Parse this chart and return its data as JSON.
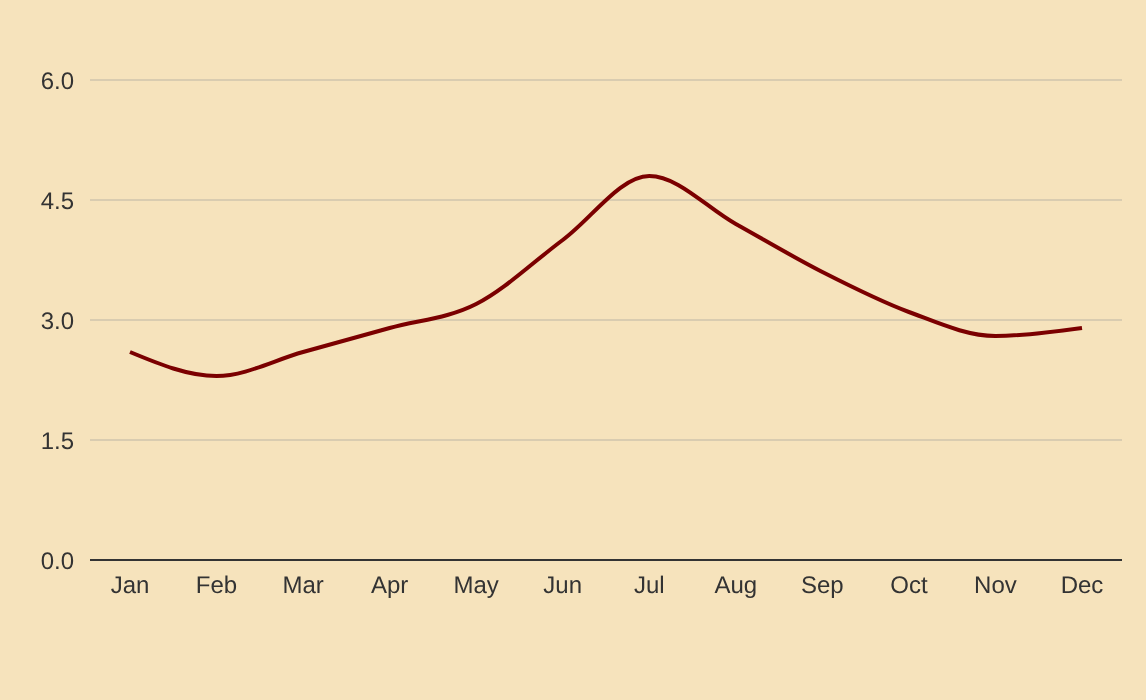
{
  "chart_data": {
    "type": "line",
    "categories": [
      "Jan",
      "Feb",
      "Mar",
      "Apr",
      "May",
      "Jun",
      "Jul",
      "Aug",
      "Sep",
      "Oct",
      "Nov",
      "Dec"
    ],
    "series": [
      {
        "color": "#7b0000",
        "values": [
          2.6,
          2.3,
          2.6,
          2.9,
          3.2,
          4.0,
          4.8,
          4.2,
          3.6,
          3.1,
          2.8,
          2.9
        ]
      }
    ],
    "ylim": [
      0,
      6
    ],
    "yticks": [
      {
        "value": 0,
        "label": "0.0"
      },
      1.5,
      {
        "value": 3,
        "label": "3.0"
      },
      4.5,
      {
        "value": 6,
        "label": "6.0"
      }
    ],
    "grid": "y",
    "legend": false,
    "marker": "none",
    "line_style": "solid"
  }
}
